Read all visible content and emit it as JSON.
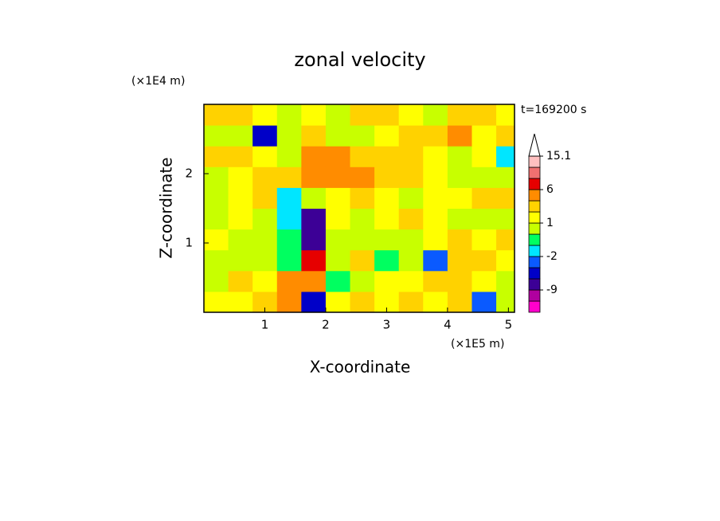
{
  "chart_data": {
    "type": "contour",
    "title": "zonal velocity",
    "x_label": "X-coordinate",
    "y_label": "Z-coordinate",
    "x_unit": "(×1E5 m)",
    "y_unit": "(×1E4 m)",
    "time_label": "t=169200 s",
    "xlim": [
      0,
      5.1
    ],
    "ylim": [
      0,
      3
    ],
    "xticks": [
      1,
      2,
      3,
      4,
      5
    ],
    "yticks": [
      1,
      2
    ],
    "x": [
      0.2,
      0.6,
      1.0,
      1.4,
      1.8,
      2.2,
      2.6,
      3.0,
      3.4,
      3.8,
      4.2,
      4.6,
      5.0
    ],
    "y": [
      0.15,
      0.45,
      0.75,
      1.05,
      1.35,
      1.65,
      1.95,
      2.25,
      2.55,
      2.85
    ],
    "z": [
      [
        1.5,
        1.5,
        2,
        4,
        -6,
        1.5,
        2,
        1.5,
        2,
        1.5,
        2,
        -3,
        0.5
      ],
      [
        0.5,
        2,
        1.5,
        4,
        5,
        -1,
        0.5,
        1.5,
        1.5,
        2,
        2,
        1.5,
        0.5
      ],
      [
        0.5,
        0.5,
        0.5,
        -1,
        7,
        0.5,
        2,
        -1,
        0.5,
        -3,
        2,
        2,
        1.5
      ],
      [
        1.5,
        0.5,
        0.5,
        -1,
        -8,
        0.5,
        0.5,
        0.5,
        0.5,
        1.5,
        2,
        1.5,
        2
      ],
      [
        0.5,
        1.5,
        0.5,
        -1.5,
        -9,
        1.5,
        0.5,
        1.5,
        2,
        1.5,
        0.5,
        0.5,
        0.5
      ],
      [
        0.5,
        1.5,
        2,
        -1.5,
        0.5,
        1.5,
        2,
        1.5,
        0.5,
        1.5,
        1.5,
        2,
        2
      ],
      [
        0.5,
        1.5,
        2,
        2,
        3,
        4,
        4,
        2,
        2,
        1.5,
        0.5,
        0.5,
        0.5
      ],
      [
        2,
        2,
        1.5,
        0.5,
        3,
        4,
        2,
        2,
        2,
        1.5,
        0.5,
        1.5,
        -1.5
      ],
      [
        0.5,
        0.5,
        -5,
        0.5,
        2,
        0.5,
        0.5,
        1.5,
        2,
        2,
        3.5,
        1.5,
        2
      ],
      [
        2,
        2,
        1.5,
        0.5,
        1.5,
        0.5,
        2,
        2,
        1.5,
        0.5,
        2,
        2,
        1.5
      ]
    ],
    "levels": [
      -15,
      -12,
      -9,
      -6,
      -3,
      -2,
      -1,
      0,
      1,
      2,
      3,
      6,
      9,
      12,
      15.1
    ],
    "colors": [
      "#ff00cc",
      "#b0009f",
      "#3c0096",
      "#0000c8",
      "#0a5aff",
      "#00e6ff",
      "#00ff60",
      "#c8ff00",
      "#ffff00",
      "#ffd200",
      "#ff8c00",
      "#e60000",
      "#f07070",
      "#ffc0c0"
    ],
    "colorbar_ticks": [
      15.1,
      6,
      1,
      -2,
      -9
    ]
  }
}
